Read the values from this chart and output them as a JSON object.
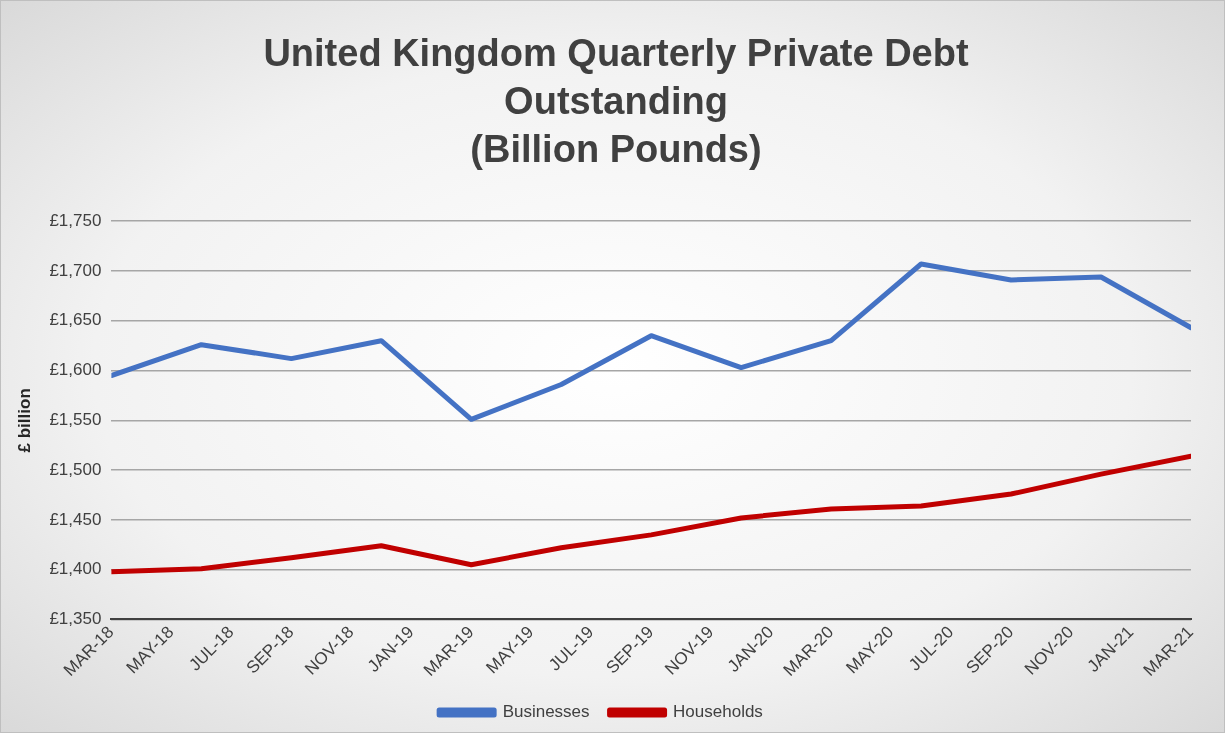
{
  "chart_data": {
    "type": "line",
    "title": "United Kingdom Quarterly Private Debt\nOutstanding\n(Billion Pounds)",
    "ylabel": "£ billion",
    "x": [
      "2018-03",
      "2018-06",
      "2018-09",
      "2018-12",
      "2019-03",
      "2019-06",
      "2019-09",
      "2019-12",
      "2020-03",
      "2020-06",
      "2020-09",
      "2020-12",
      "2021-03"
    ],
    "series": [
      {
        "name": "Businesses",
        "color": "#4472c4",
        "values": [
          1595,
          1626,
          1612,
          1630,
          1551,
          1586,
          1635,
          1603,
          1630,
          1707,
          1691,
          1694,
          1643
        ]
      },
      {
        "name": "Households",
        "color": "#c00000",
        "values": [
          1398,
          1401,
          1412,
          1424,
          1405,
          1422,
          1435,
          1452,
          1461,
          1464,
          1476,
          1496,
          1514
        ]
      }
    ],
    "xlim": [
      "2018-03",
      "2021-03"
    ],
    "xticks": [
      {
        "value": "2018-03",
        "label": "MAR-18"
      },
      {
        "value": "2018-05",
        "label": "MAY-18"
      },
      {
        "value": "2018-07",
        "label": "JUL-18"
      },
      {
        "value": "2018-09",
        "label": "SEP-18"
      },
      {
        "value": "2018-11",
        "label": "NOV-18"
      },
      {
        "value": "2019-01",
        "label": "JAN-19"
      },
      {
        "value": "2019-03",
        "label": "MAR-19"
      },
      {
        "value": "2019-05",
        "label": "MAY-19"
      },
      {
        "value": "2019-07",
        "label": "JUL-19"
      },
      {
        "value": "2019-09",
        "label": "SEP-19"
      },
      {
        "value": "2019-11",
        "label": "NOV-19"
      },
      {
        "value": "2020-01",
        "label": "JAN-20"
      },
      {
        "value": "2020-03",
        "label": "MAR-20"
      },
      {
        "value": "2020-05",
        "label": "MAY-20"
      },
      {
        "value": "2020-07",
        "label": "JUL-20"
      },
      {
        "value": "2020-09",
        "label": "SEP-20"
      },
      {
        "value": "2020-11",
        "label": "NOV-20"
      },
      {
        "value": "2021-01",
        "label": "JAN-21"
      },
      {
        "value": "2021-03",
        "label": "MAR-21"
      }
    ],
    "ylim": [
      1350,
      1750
    ],
    "yticks": [
      {
        "value": 1350,
        "label": "£1,350"
      },
      {
        "value": 1400,
        "label": "£1,400"
      },
      {
        "value": 1450,
        "label": "£1,450"
      },
      {
        "value": 1500,
        "label": "£1,500"
      },
      {
        "value": 1550,
        "label": "£1,550"
      },
      {
        "value": 1600,
        "label": "£1,600"
      },
      {
        "value": 1650,
        "label": "£1,650"
      },
      {
        "value": 1700,
        "label": "£1,700"
      },
      {
        "value": 1750,
        "label": "£1,750"
      }
    ],
    "grid": "y",
    "legend": "bottom",
    "marker": "none",
    "line_style": "solid"
  }
}
